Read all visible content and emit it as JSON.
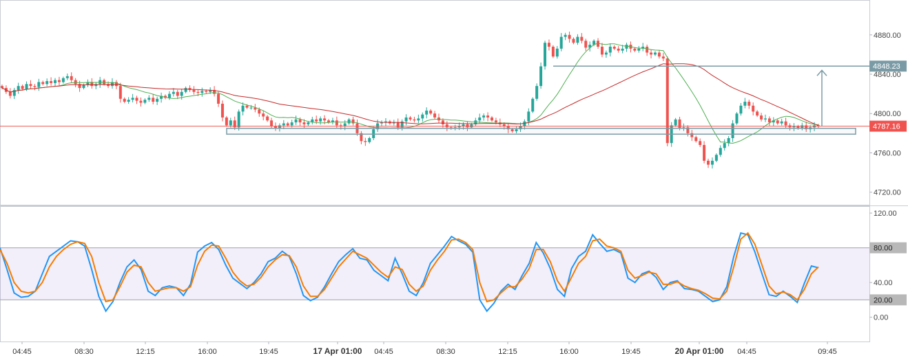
{
  "chart_data": [
    {
      "type": "candlestick",
      "pane": "price",
      "y_ticks": [
        "4880.00",
        "4840.00",
        "4800.00",
        "4760.00",
        "4720.00"
      ],
      "ylim": [
        4710,
        4912
      ],
      "x_ticks": [
        {
          "label": "04:45",
          "bold": false
        },
        {
          "label": "08:30",
          "bold": false
        },
        {
          "label": "12:15",
          "bold": false
        },
        {
          "label": "16:00",
          "bold": false
        },
        {
          "label": "19:45",
          "bold": false
        },
        {
          "label": "17 Apr 01:00",
          "bold": true
        },
        {
          "label": "04:45",
          "bold": false
        },
        {
          "label": "08:30",
          "bold": false
        },
        {
          "label": "12:15",
          "bold": false
        },
        {
          "label": "16:00",
          "bold": false
        },
        {
          "label": "19:45",
          "bold": false
        },
        {
          "label": "20 Apr 01:00",
          "bold": true
        },
        {
          "label": "04:45",
          "bold": false
        },
        {
          "label": "09:45",
          "bold": false
        }
      ],
      "price_labels": [
        {
          "text": "4848.23",
          "value": 4848.23,
          "color": "#7a9ba6"
        },
        {
          "text": "4787.16",
          "value": 4787.16,
          "color": "#ef5350"
        }
      ],
      "candles_close": [
        4826,
        4822,
        4818,
        4824,
        4828,
        4825,
        4830,
        4828,
        4827,
        4832,
        4830,
        4833,
        4831,
        4834,
        4832,
        4836,
        4838,
        4834,
        4830,
        4826,
        4829,
        4832,
        4828,
        4830,
        4834,
        4830,
        4828,
        4832,
        4828,
        4815,
        4812,
        4814,
        4816,
        4813,
        4811,
        4814,
        4816,
        4812,
        4815,
        4818,
        4816,
        4820,
        4822,
        4818,
        4822,
        4826,
        4824,
        4822,
        4821,
        4823,
        4822,
        4824,
        4820,
        4810,
        4796,
        4788,
        4793,
        4786,
        4802,
        4808,
        4806,
        4806,
        4804,
        4800,
        4797,
        4793,
        4787,
        4785,
        4788,
        4790,
        4788,
        4791,
        4794,
        4791,
        4789,
        4791,
        4794,
        4792,
        4795,
        4793,
        4791,
        4793,
        4788,
        4787,
        4790,
        4794,
        4790,
        4780,
        4772,
        4771,
        4775,
        4784,
        4790,
        4791,
        4792,
        4790,
        4791,
        4786,
        4792,
        4796,
        4794,
        4793,
        4795,
        4799,
        4803,
        4800,
        4796,
        4793,
        4789,
        4786,
        4785,
        4786,
        4787,
        4789,
        4786,
        4789,
        4793,
        4796,
        4798,
        4796,
        4793,
        4791,
        4789,
        4787,
        4784,
        4782,
        4784,
        4787,
        4792,
        4802,
        4815,
        4828,
        4848,
        4872,
        4868,
        4858,
        4866,
        4878,
        4880,
        4876,
        4872,
        4878,
        4874,
        4867,
        4870,
        4874,
        4868,
        4860,
        4862,
        4868,
        4866,
        4864,
        4866,
        4870,
        4866,
        4864,
        4866,
        4868,
        4862,
        4860,
        4862,
        4858,
        4856,
        4770,
        4788,
        4794,
        4785,
        4786,
        4780,
        4776,
        4772,
        4768,
        4752,
        4748,
        4752,
        4758,
        4765,
        4770,
        4775,
        4790,
        4800,
        4808,
        4812,
        4808,
        4802,
        4798,
        4794,
        4795,
        4791,
        4793,
        4790,
        4792,
        4788,
        4786,
        4787,
        4785,
        4788,
        4784,
        4786,
        4788,
        4787
      ],
      "moving_averages": [
        {
          "color": "#4caf50",
          "last_value": 4800
        },
        {
          "color": "#c62828",
          "last_value": 4806
        }
      ],
      "annotations": [
        {
          "shape": "box",
          "label": "",
          "price_range": [
            4779,
            4785
          ]
        },
        {
          "shape": "arrow",
          "label": "",
          "from_price": 4787.16,
          "to_price": 4848.23
        }
      ]
    },
    {
      "type": "line",
      "pane": "oscillator",
      "y_ticks": [
        "120.00",
        "80.00",
        "40.00",
        "20.00",
        "0.00"
      ],
      "ylim": [
        -28,
        128
      ],
      "band": [
        20,
        80
      ],
      "band_labels": [
        "80.00",
        "20.00"
      ],
      "series": [
        {
          "color": "#2196f3",
          "values": [
            80,
            55,
            28,
            23,
            24,
            30,
            50,
            70,
            76,
            82,
            88,
            87,
            82,
            55,
            24,
            7,
            18,
            40,
            58,
            66,
            55,
            30,
            25,
            34,
            36,
            34,
            25,
            38,
            75,
            82,
            86,
            78,
            60,
            45,
            39,
            33,
            40,
            50,
            64,
            68,
            76,
            70,
            50,
            25,
            19,
            23,
            35,
            50,
            64,
            72,
            79,
            68,
            66,
            54,
            48,
            42,
            68,
            50,
            30,
            25,
            40,
            62,
            72,
            82,
            93,
            88,
            84,
            75,
            20,
            7,
            16,
            30,
            38,
            32,
            48,
            62,
            86,
            74,
            56,
            32,
            24,
            56,
            70,
            76,
            95,
            85,
            76,
            78,
            74,
            45,
            40,
            50,
            53,
            46,
            32,
            40,
            42,
            33,
            32,
            30,
            24,
            18,
            20,
            35,
            70,
            97,
            95,
            75,
            50,
            26,
            24,
            30,
            24,
            17,
            39,
            59,
            57
          ]
        },
        {
          "color": "#f57c00",
          "values": [
            78,
            62,
            40,
            30,
            28,
            30,
            40,
            58,
            70,
            78,
            84,
            87,
            85,
            70,
            40,
            18,
            20,
            35,
            52,
            60,
            58,
            40,
            30,
            32,
            34,
            34,
            30,
            35,
            60,
            76,
            83,
            82,
            68,
            52,
            42,
            36,
            38,
            46,
            58,
            66,
            72,
            71,
            58,
            36,
            24,
            24,
            32,
            45,
            58,
            67,
            76,
            72,
            68,
            60,
            52,
            46,
            58,
            55,
            38,
            30,
            36,
            54,
            66,
            76,
            89,
            90,
            86,
            78,
            40,
            18,
            20,
            28,
            35,
            35,
            44,
            56,
            78,
            78,
            64,
            42,
            30,
            46,
            62,
            70,
            88,
            90,
            82,
            80,
            76,
            54,
            45,
            48,
            52,
            50,
            38,
            38,
            41,
            36,
            33,
            31,
            27,
            22,
            21,
            30,
            58,
            90,
            97,
            84,
            60,
            36,
            27,
            29,
            26,
            20,
            32,
            50,
            58
          ]
        }
      ]
    }
  ]
}
